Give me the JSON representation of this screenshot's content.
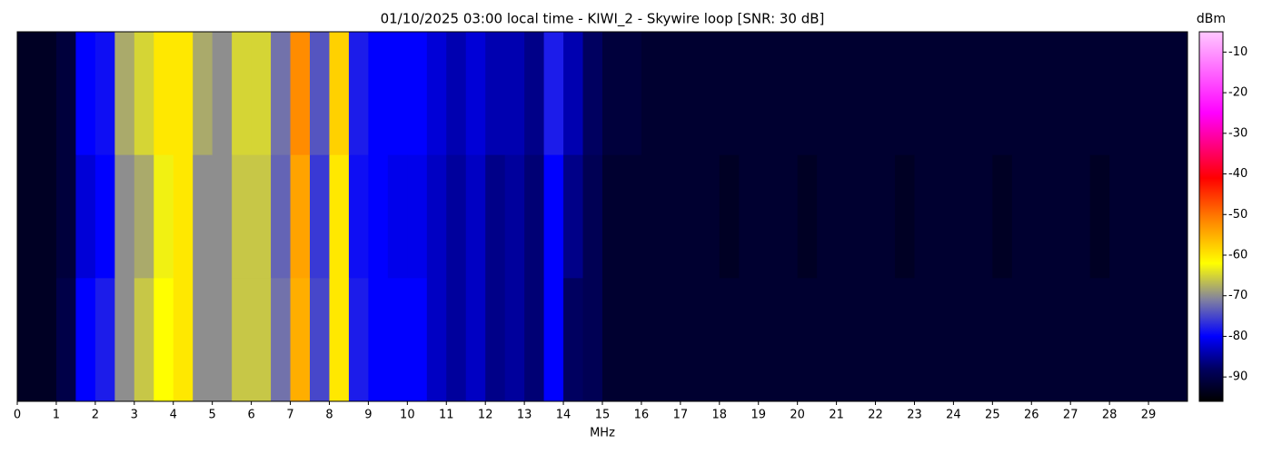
{
  "chart_data": {
    "type": "heatmap",
    "title": "01/10/2025 03:00 local time - KIWI_2 - Skywire loop [SNR: 30 dB]",
    "x_label": "MHz",
    "colorbar_label": "dBm",
    "bins": [
      0,
      0.5,
      1,
      1.5,
      2,
      2.5,
      3,
      3.5,
      4,
      4.5,
      5,
      5.5,
      6,
      6.5,
      7,
      7.5,
      8,
      8.5,
      9,
      9.5,
      10,
      10.5,
      11,
      11.5,
      12,
      12.5,
      13,
      13.5,
      14,
      14.5,
      15,
      15.5,
      16,
      16.5,
      17,
      17.5,
      18,
      18.5,
      19,
      19.5,
      20,
      20.5,
      21,
      21.5,
      22,
      22.5,
      23,
      23.5,
      24,
      24.5,
      25,
      25.5,
      26,
      26.5,
      27,
      27.5,
      28,
      28.5,
      29,
      29.5,
      30
    ],
    "values": [
      [
        -93,
        -93,
        -91,
        -80,
        -79,
        -68,
        -65,
        -60,
        -60,
        -68,
        -70,
        -65,
        -65,
        -72,
        -52,
        -74,
        -58,
        -78,
        -80,
        -80,
        -80,
        -82,
        -84,
        -82,
        -84,
        -84,
        -86,
        -78,
        -84,
        -88,
        -91,
        -91,
        -92,
        -92,
        -92,
        -92,
        -92,
        -92,
        -92,
        -92,
        -92,
        -92,
        -92,
        -92,
        -92,
        -92,
        -92,
        -92,
        -92,
        -92,
        -92,
        -92,
        -92,
        -92,
        -92,
        -92,
        -92,
        -92,
        -92,
        -92
      ],
      [
        -93,
        -93,
        -91,
        -82,
        -80,
        -70,
        -68,
        -63,
        -60,
        -70,
        -70,
        -66,
        -66,
        -73,
        -54,
        -76,
        -60,
        -79,
        -80,
        -81,
        -81,
        -83,
        -85,
        -83,
        -86,
        -85,
        -87,
        -80,
        -86,
        -89,
        -92,
        -92,
        -92,
        -92,
        -92,
        -92,
        -93,
        -92,
        -92,
        -92,
        -93,
        -92,
        -92,
        -92,
        -92,
        -93,
        -92,
        -92,
        -92,
        -92,
        -93,
        -92,
        -92,
        -92,
        -92,
        -93,
        -92,
        -92,
        -92,
        -92
      ],
      [
        -93,
        -93,
        -90,
        -80,
        -78,
        -70,
        -66,
        -62,
        -60,
        -70,
        -70,
        -66,
        -66,
        -72,
        -55,
        -75,
        -60,
        -78,
        -80,
        -80,
        -80,
        -83,
        -85,
        -83,
        -86,
        -85,
        -87,
        -80,
        -88,
        -89,
        -92,
        -92,
        -92,
        -92,
        -92,
        -92,
        -92,
        -92,
        -92,
        -92,
        -92,
        -92,
        -92,
        -92,
        -92,
        -92,
        -92,
        -92,
        -92,
        -92,
        -92,
        -92,
        -92,
        -92,
        -92,
        -92,
        -92,
        -92,
        -92,
        -92
      ]
    ],
    "xlim": [
      0,
      30
    ],
    "xticks": [
      0,
      1,
      2,
      3,
      4,
      5,
      6,
      7,
      8,
      9,
      10,
      11,
      12,
      13,
      14,
      15,
      16,
      17,
      18,
      19,
      20,
      21,
      22,
      23,
      24,
      25,
      26,
      27,
      28,
      29
    ],
    "clim": [
      -96,
      -5
    ],
    "cticks": [
      -90,
      -80,
      -70,
      -60,
      -50,
      -40,
      -30,
      -20,
      -10
    ],
    "colorscale": [
      [
        -96,
        "#000000"
      ],
      [
        -88,
        "#000060"
      ],
      [
        -80,
        "#0000ff"
      ],
      [
        -71,
        "#8080a0"
      ],
      [
        -62,
        "#ffff00"
      ],
      [
        -51,
        "#ff8000"
      ],
      [
        -41,
        "#ff0000"
      ],
      [
        -25,
        "#ff00ff"
      ],
      [
        -5,
        "#ffc8ff"
      ]
    ]
  }
}
